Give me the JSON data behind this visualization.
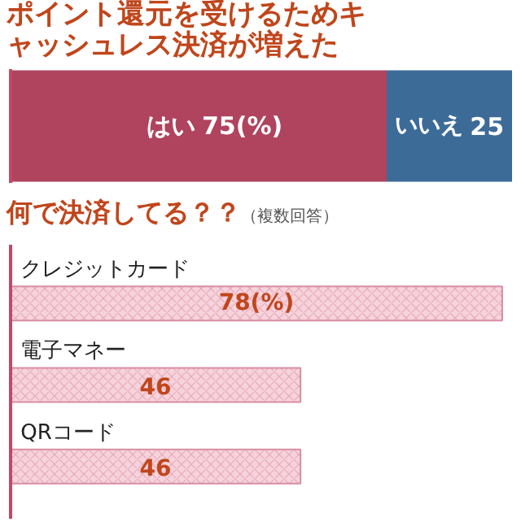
{
  "chart_data": [
    {
      "type": "bar",
      "title": "ポイント還元を受けるためキャッシュレス決済が増えた",
      "orientation": "horizontal",
      "stacked": true,
      "categories": [
        null
      ],
      "series": [
        {
          "name": "はい",
          "color": "#b0435e",
          "values": [
            75
          ],
          "value_labels": [
            "75(%)"
          ]
        },
        {
          "name": "いいえ",
          "color": "#3d6b98",
          "values": [
            25
          ],
          "value_labels": [
            "25"
          ]
        }
      ]
    },
    {
      "type": "bar",
      "title": "何で決済してる？？",
      "subtitle": "（複数回答）",
      "orientation": "horizontal",
      "categories": [
        "クレジットカード",
        "電子マネー",
        "QRコード"
      ],
      "values": [
        78,
        46,
        46
      ],
      "value_labels": [
        "78(%)",
        "46",
        "46"
      ],
      "color": "#f6d3dc"
    }
  ]
}
